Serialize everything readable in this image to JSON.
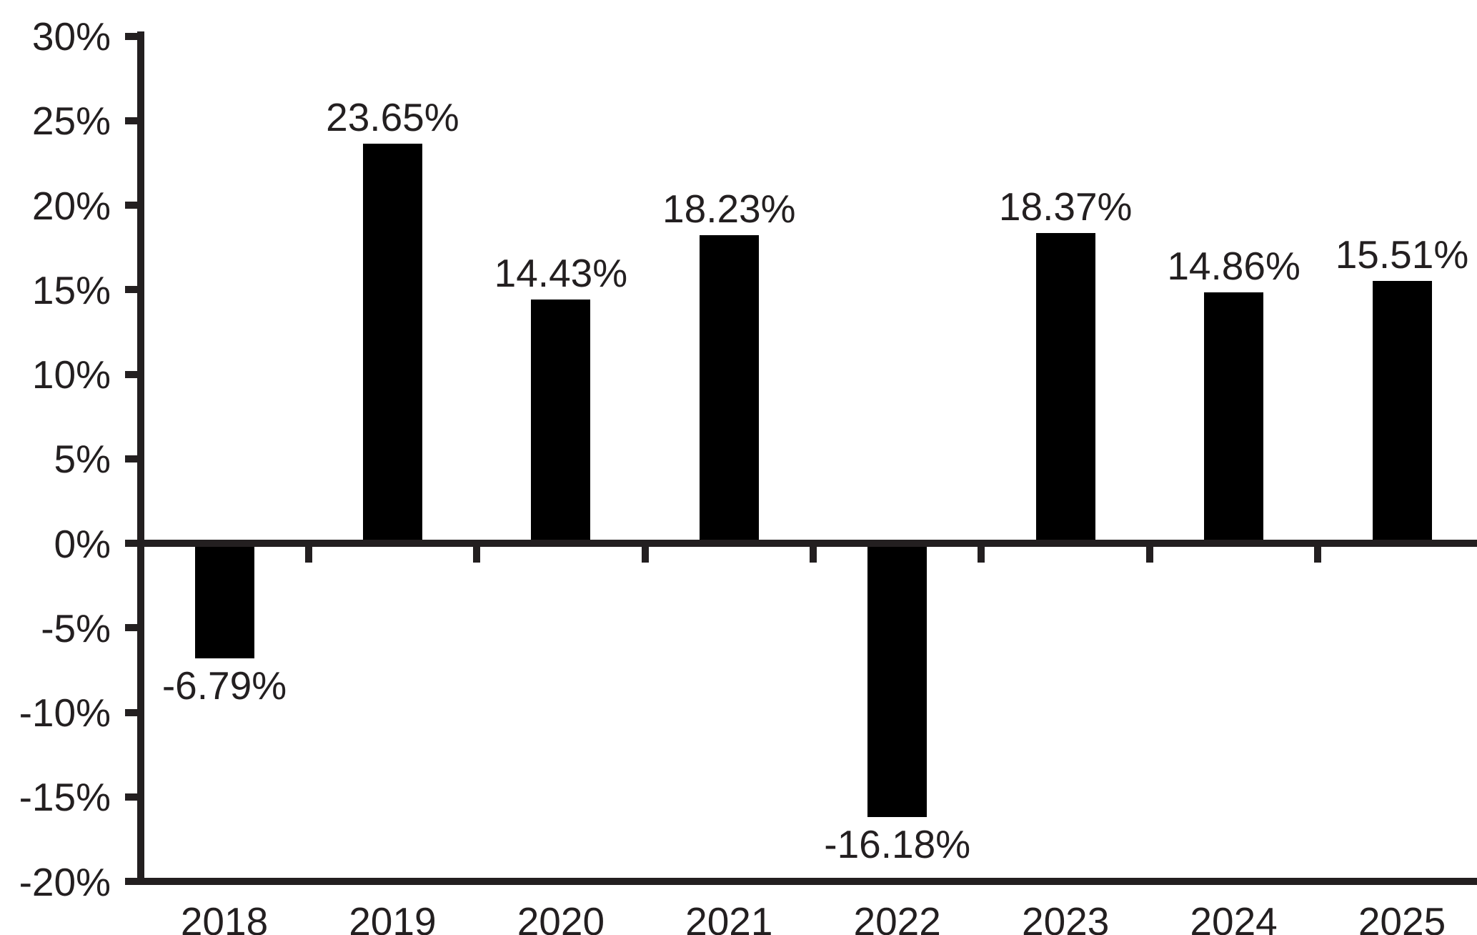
{
  "chart_data": {
    "type": "bar",
    "title": "",
    "xlabel": "",
    "ylabel": "",
    "categories": [
      "2018",
      "2019",
      "2020",
      "2021",
      "2022",
      "2023",
      "2024",
      "2025"
    ],
    "values": [
      -6.79,
      23.65,
      14.43,
      18.23,
      -16.18,
      18.37,
      14.86,
      15.51
    ],
    "value_labels": [
      "-6.79%",
      "23.65%",
      "14.43%",
      "18.23%",
      "-16.18%",
      "18.37%",
      "14.86%",
      "15.51%"
    ],
    "ylim": [
      -20,
      30
    ],
    "ytick_step": 5,
    "ytick_labels": [
      "30%",
      "25%",
      "20%",
      "15%",
      "10%",
      "5%",
      "0%",
      "-5%",
      "-10%",
      "-15%",
      "-20%"
    ],
    "ytick_values": [
      30,
      25,
      20,
      15,
      10,
      5,
      0,
      -5,
      -10,
      -15,
      -20
    ],
    "grid": false,
    "legend": null,
    "bar_color": "#000000",
    "axis_color": "#231f20",
    "text_color": "#231f20",
    "background_color": "#ffffff"
  }
}
